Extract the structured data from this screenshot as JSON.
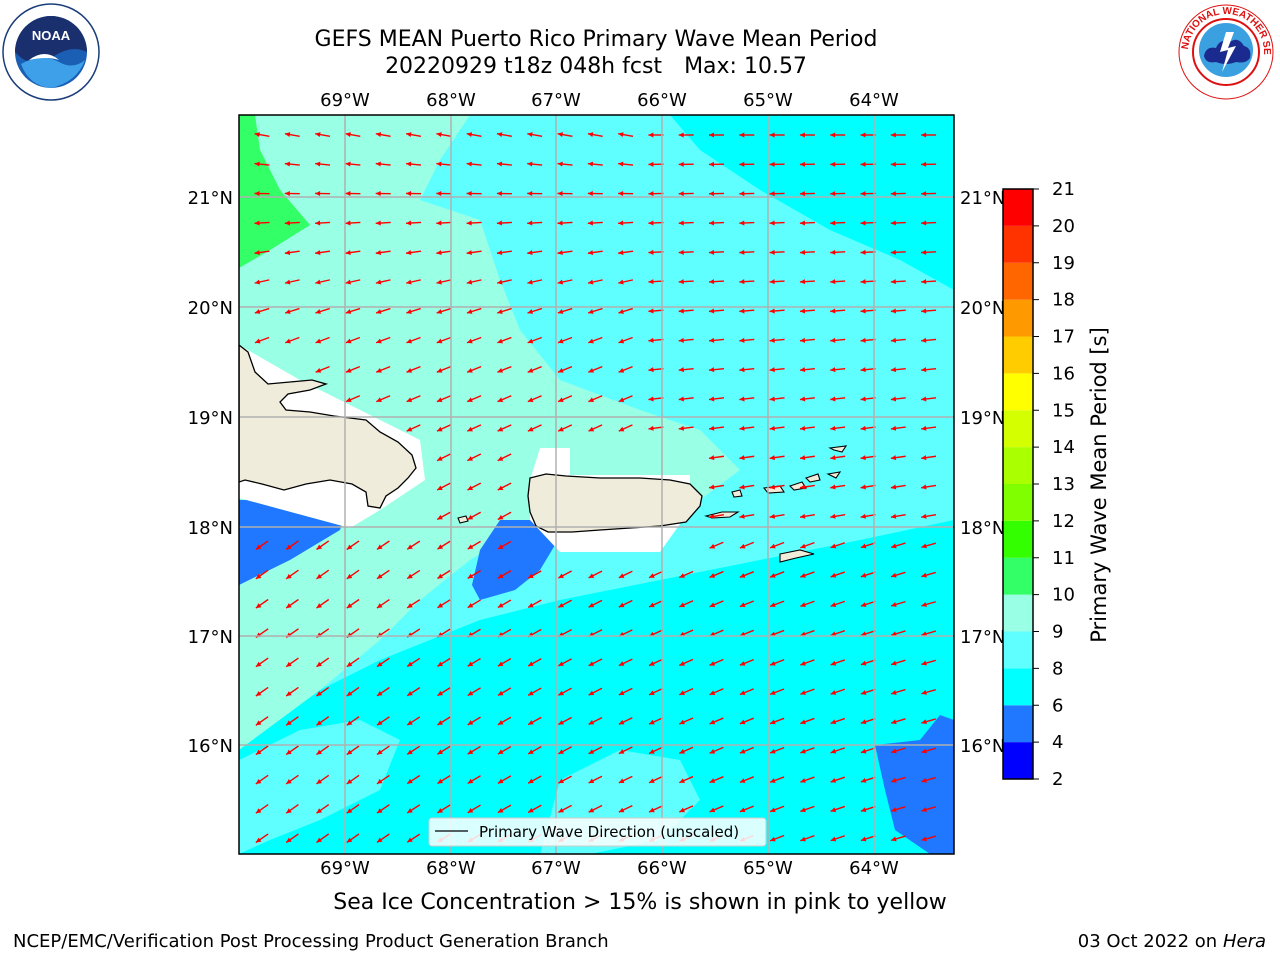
{
  "title_line1": "GEFS MEAN Puerto Rico Primary Wave Mean Period",
  "title_line2_left": "20220929 t18z 048h fcst",
  "title_line2_right": "Max: 10.57",
  "lon_labels": [
    "69°W",
    "68°W",
    "67°W",
    "66°W",
    "65°W",
    "64°W"
  ],
  "lat_labels": [
    "21°N",
    "20°N",
    "19°N",
    "18°N",
    "17°N",
    "16°N"
  ],
  "legend_label": "Primary Wave Direction (unscaled)",
  "colorbar": {
    "title": "Primary Wave Mean Period [s]",
    "ticks": [
      "2",
      "4",
      "6",
      "8",
      "9",
      "10",
      "11",
      "12",
      "13",
      "14",
      "15",
      "16",
      "17",
      "18",
      "19",
      "20",
      "21"
    ],
    "colors": [
      "#0000ff",
      "#1f78ff",
      "#00ffff",
      "#5fffff",
      "#99ffe5",
      "#33ff66",
      "#33ff00",
      "#80ff00",
      "#aaff00",
      "#d4ff00",
      "#ffff00",
      "#ffcc00",
      "#ff9900",
      "#ff6600",
      "#ff3300",
      "#ff0000"
    ]
  },
  "caption": "Sea Ice Concentration > 15% is shown in pink to yellow",
  "footer_left": "NCEP/EMC/Verification Post Processing Product Generation Branch",
  "footer_right_text": "03 Oct 2022 on",
  "footer_right_host": "Hera",
  "colors": {
    "deep_blue": "#1f78ff",
    "cyan": "#00ffff",
    "light_cyan": "#5fffff",
    "aqua": "#99ffe5",
    "green": "#33ff66",
    "land": "#efecdc",
    "arrow": "#ff0000",
    "grid": "#b0b0b0"
  },
  "logos": {
    "left": "NOAA",
    "right": "NATIONAL WEATHER SERVICE"
  }
}
